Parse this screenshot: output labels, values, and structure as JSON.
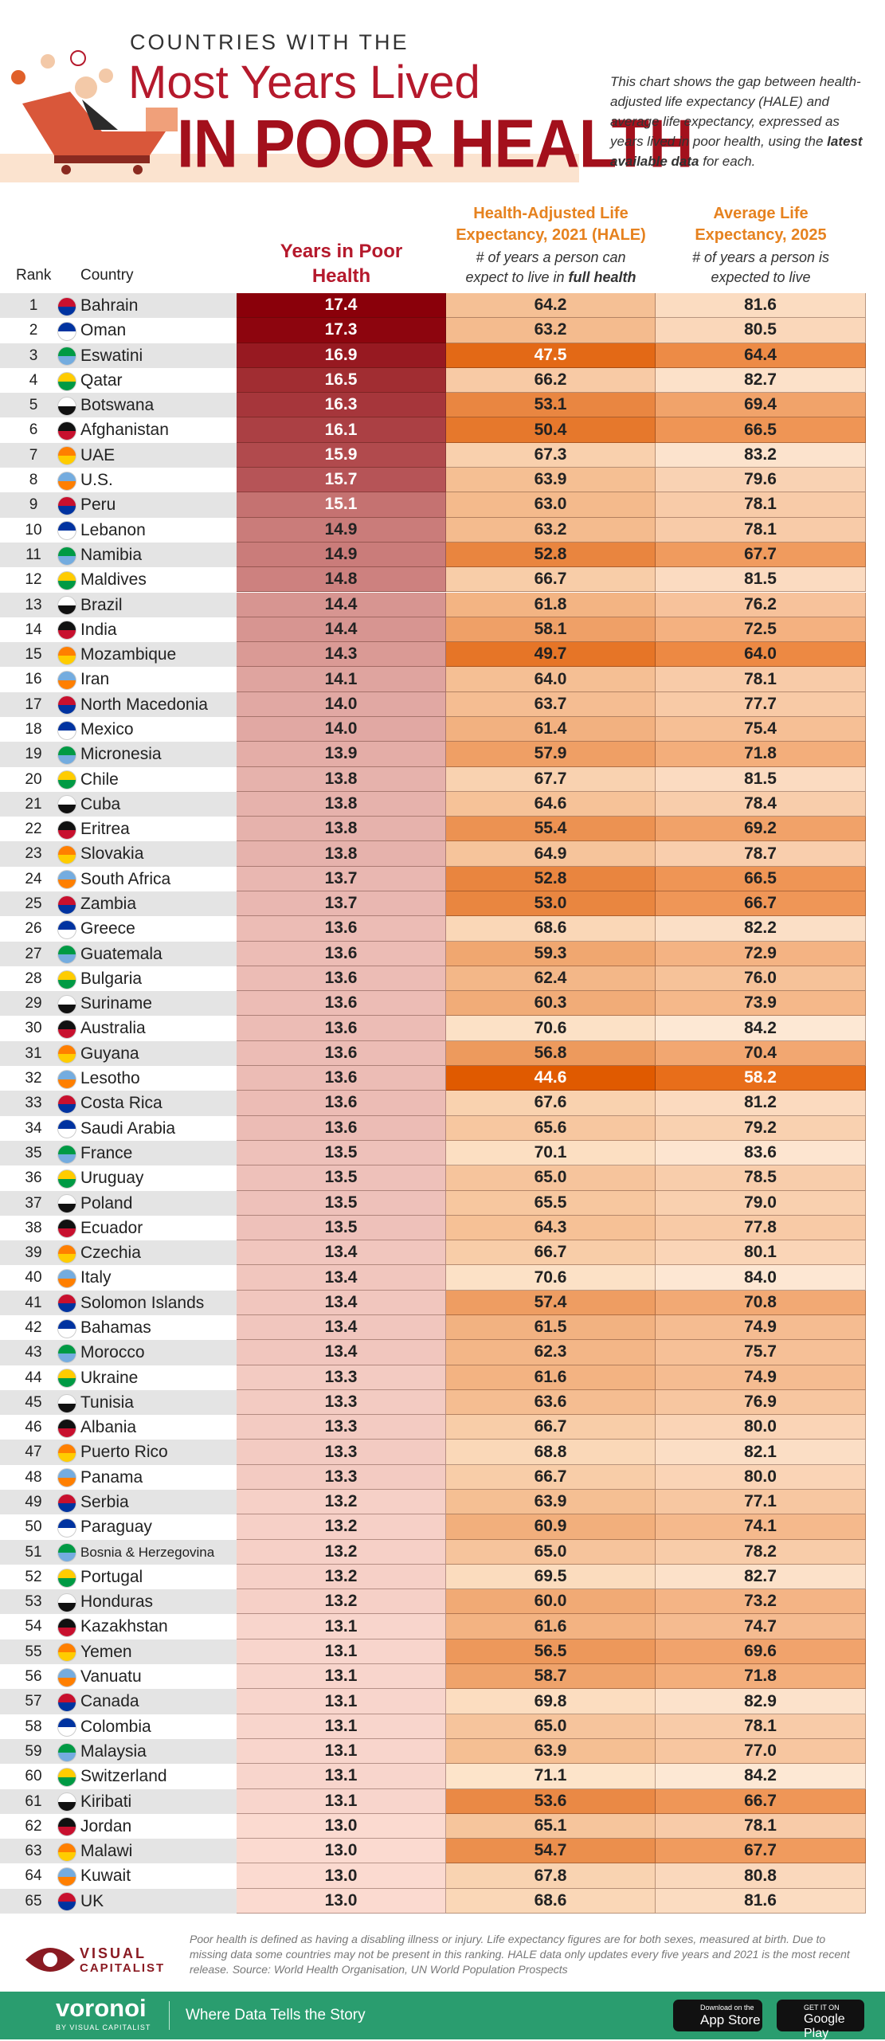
{
  "header": {
    "kicker": "COUNTRIES WITH THE",
    "title": "Most Years Lived",
    "title_big": "IN POOR HEALTH",
    "description": [
      "This chart shows the gap between health-adjusted life expectancy (HALE) and average life expectancy, expressed as years lived in poor health, using the ",
      "latest available data",
      " for each."
    ]
  },
  "table": {
    "columns": {
      "rank": "Rank",
      "country": "Country",
      "poor": "Years in Poor Health",
      "hale": "Health-Adjusted Life Expectancy, 2021 (HALE)",
      "hale_sub": "# of years a person can expect to live in ",
      "hale_sub_bold": "full health",
      "life": "Average Life Expectancy, 2025",
      "life_sub": "# of years a person is expected to live"
    },
    "rows": [
      [
        "1",
        "Bahrain",
        "17.4",
        "64.2",
        "81.6"
      ],
      [
        "2",
        "Oman",
        "17.3",
        "63.2",
        "80.5"
      ],
      [
        "3",
        "Eswatini",
        "16.9",
        "47.5",
        "64.4"
      ],
      [
        "4",
        "Qatar",
        "16.5",
        "66.2",
        "82.7"
      ],
      [
        "5",
        "Botswana",
        "16.3",
        "53.1",
        "69.4"
      ],
      [
        "6",
        "Afghanistan",
        "16.1",
        "50.4",
        "66.5"
      ],
      [
        "7",
        "UAE",
        "15.9",
        "67.3",
        "83.2"
      ],
      [
        "8",
        "U.S.",
        "15.7",
        "63.9",
        "79.6"
      ],
      [
        "9",
        "Peru",
        "15.1",
        "63.0",
        "78.1"
      ],
      [
        "10",
        "Lebanon",
        "14.9",
        "63.2",
        "78.1"
      ],
      [
        "11",
        "Namibia",
        "14.9",
        "52.8",
        "67.7"
      ],
      [
        "12",
        "Maldives",
        "14.8",
        "66.7",
        "81.5"
      ],
      [
        "13",
        "Brazil",
        "14.4",
        "61.8",
        "76.2"
      ],
      [
        "14",
        "India",
        "14.4",
        "58.1",
        "72.5"
      ],
      [
        "15",
        "Mozambique",
        "14.3",
        "49.7",
        "64.0"
      ],
      [
        "16",
        "Iran",
        "14.1",
        "64.0",
        "78.1"
      ],
      [
        "17",
        "North Macedonia",
        "14.0",
        "63.7",
        "77.7"
      ],
      [
        "18",
        "Mexico",
        "14.0",
        "61.4",
        "75.4"
      ],
      [
        "19",
        "Micronesia",
        "13.9",
        "57.9",
        "71.8"
      ],
      [
        "20",
        "Chile",
        "13.8",
        "67.7",
        "81.5"
      ],
      [
        "21",
        "Cuba",
        "13.8",
        "64.6",
        "78.4"
      ],
      [
        "22",
        "Eritrea",
        "13.8",
        "55.4",
        "69.2"
      ],
      [
        "23",
        "Slovakia",
        "13.8",
        "64.9",
        "78.7"
      ],
      [
        "24",
        "South Africa",
        "13.7",
        "52.8",
        "66.5"
      ],
      [
        "25",
        "Zambia",
        "13.7",
        "53.0",
        "66.7"
      ],
      [
        "26",
        "Greece",
        "13.6",
        "68.6",
        "82.2"
      ],
      [
        "27",
        "Guatemala",
        "13.6",
        "59.3",
        "72.9"
      ],
      [
        "28",
        "Bulgaria",
        "13.6",
        "62.4",
        "76.0"
      ],
      [
        "29",
        "Suriname",
        "13.6",
        "60.3",
        "73.9"
      ],
      [
        "30",
        "Australia",
        "13.6",
        "70.6",
        "84.2"
      ],
      [
        "31",
        "Guyana",
        "13.6",
        "56.8",
        "70.4"
      ],
      [
        "32",
        "Lesotho",
        "13.6",
        "44.6",
        "58.2"
      ],
      [
        "33",
        "Costa Rica",
        "13.6",
        "67.6",
        "81.2"
      ],
      [
        "34",
        "Saudi Arabia",
        "13.6",
        "65.6",
        "79.2"
      ],
      [
        "35",
        "France",
        "13.5",
        "70.1",
        "83.6"
      ],
      [
        "36",
        "Uruguay",
        "13.5",
        "65.0",
        "78.5"
      ],
      [
        "37",
        "Poland",
        "13.5",
        "65.5",
        "79.0"
      ],
      [
        "38",
        "Ecuador",
        "13.5",
        "64.3",
        "77.8"
      ],
      [
        "39",
        "Czechia",
        "13.4",
        "66.7",
        "80.1"
      ],
      [
        "40",
        "Italy",
        "13.4",
        "70.6",
        "84.0"
      ],
      [
        "41",
        "Solomon Islands",
        "13.4",
        "57.4",
        "70.8"
      ],
      [
        "42",
        "Bahamas",
        "13.4",
        "61.5",
        "74.9"
      ],
      [
        "43",
        "Morocco",
        "13.4",
        "62.3",
        "75.7"
      ],
      [
        "44",
        "Ukraine",
        "13.3",
        "61.6",
        "74.9"
      ],
      [
        "45",
        "Tunisia",
        "13.3",
        "63.6",
        "76.9"
      ],
      [
        "46",
        "Albania",
        "13.3",
        "66.7",
        "80.0"
      ],
      [
        "47",
        "Puerto Rico",
        "13.3",
        "68.8",
        "82.1"
      ],
      [
        "48",
        "Panama",
        "13.3",
        "66.7",
        "80.0"
      ],
      [
        "49",
        "Serbia",
        "13.2",
        "63.9",
        "77.1"
      ],
      [
        "50",
        "Paraguay",
        "13.2",
        "60.9",
        "74.1"
      ],
      [
        "51",
        "Bosnia & Herzegovina",
        "13.2",
        "65.0",
        "78.2"
      ],
      [
        "52",
        "Portugal",
        "13.2",
        "69.5",
        "82.7"
      ],
      [
        "53",
        "Honduras",
        "13.2",
        "60.0",
        "73.2"
      ],
      [
        "54",
        "Kazakhstan",
        "13.1",
        "61.6",
        "74.7"
      ],
      [
        "55",
        "Yemen",
        "13.1",
        "56.5",
        "69.6"
      ],
      [
        "56",
        "Vanuatu",
        "13.1",
        "58.7",
        "71.8"
      ],
      [
        "57",
        "Canada",
        "13.1",
        "69.8",
        "82.9"
      ],
      [
        "58",
        "Colombia",
        "13.1",
        "65.0",
        "78.1"
      ],
      [
        "59",
        "Malaysia",
        "13.1",
        "63.9",
        "77.0"
      ],
      [
        "60",
        "Switzerland",
        "13.1",
        "71.1",
        "84.2"
      ],
      [
        "61",
        "Kiribati",
        "13.1",
        "53.6",
        "66.7"
      ],
      [
        "62",
        "Jordan",
        "13.0",
        "65.1",
        "78.1"
      ],
      [
        "63",
        "Malawi",
        "13.0",
        "54.7",
        "67.7"
      ],
      [
        "64",
        "Kuwait",
        "13.0",
        "67.8",
        "80.8"
      ],
      [
        "65",
        "UK",
        "13.0",
        "68.6",
        "81.6"
      ]
    ]
  },
  "footer": {
    "note": "Poor health is defined as having a disabling illness or injury. Life expectancy figures are for both sexes, measured at birth. Due to missing data some countries may not be present in this ranking. HALE data only updates every five years and 2021 is the most recent release. Source: World Health Organisation, UN World Population Prospects",
    "logo_top": "VISUAL",
    "logo_bottom": "CAPITALIST",
    "brand": "voronoi",
    "brand_sub": "BY VISUAL CAPITALIST",
    "tagline": "Where Data Tells the Story",
    "app_store_top": "Download on the",
    "app_store": "App Store",
    "play_top": "GET IT ON",
    "play": "Google Play"
  }
}
